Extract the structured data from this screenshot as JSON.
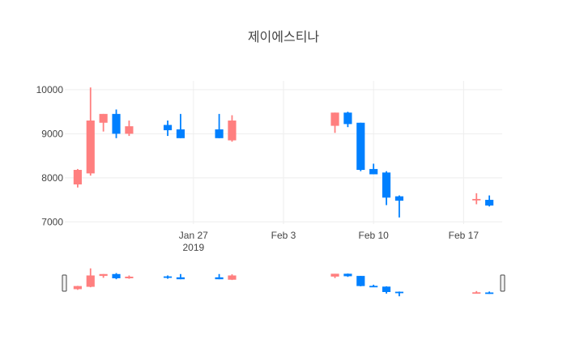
{
  "chart_data": {
    "type": "candlestick",
    "title": "제이에스티나",
    "colors": {
      "up": "#FF7F7F",
      "down": "#0080FF",
      "grid": "#eeeeee"
    },
    "ylim": [
      6950,
      10200
    ],
    "xlim": [
      "2019-01-17",
      "2019-02-20"
    ],
    "y_ticks": [
      {
        "value": 7000,
        "label": "7000"
      },
      {
        "value": 8000,
        "label": "8000"
      },
      {
        "value": 9000,
        "label": "9000"
      },
      {
        "value": 10000,
        "label": "10000"
      }
    ],
    "x_ticks": [
      {
        "date": "2019-01-27",
        "label": "Jan 27",
        "sublabel": "2019"
      },
      {
        "date": "2019-02-03",
        "label": "Feb 3",
        "sublabel": ""
      },
      {
        "date": "2019-02-10",
        "label": "Feb 10",
        "sublabel": ""
      },
      {
        "date": "2019-02-17",
        "label": "Feb 17",
        "sublabel": ""
      }
    ],
    "candles": [
      {
        "date": "2019-01-18",
        "open": 7850,
        "high": 8200,
        "low": 7780,
        "close": 8180
      },
      {
        "date": "2019-01-19",
        "open": 8100,
        "high": 10050,
        "low": 8050,
        "close": 9300
      },
      {
        "date": "2019-01-20",
        "open": 9250,
        "high": 9450,
        "low": 9050,
        "close": 9450
      },
      {
        "date": "2019-01-21",
        "open": 9450,
        "high": 9550,
        "low": 8900,
        "close": 9000
      },
      {
        "date": "2019-01-22",
        "open": 9000,
        "high": 9300,
        "low": 8950,
        "close": 9170
      },
      {
        "date": "2019-01-25",
        "open": 9200,
        "high": 9300,
        "low": 8950,
        "close": 9080
      },
      {
        "date": "2019-01-26",
        "open": 9100,
        "high": 9450,
        "low": 8900,
        "close": 8900
      },
      {
        "date": "2019-01-29",
        "open": 9100,
        "high": 9450,
        "low": 8900,
        "close": 8900
      },
      {
        "date": "2019-01-30",
        "open": 8850,
        "high": 9420,
        "low": 8820,
        "close": 9300
      },
      {
        "date": "2019-02-07",
        "open": 9180,
        "high": 9480,
        "low": 9020,
        "close": 9480
      },
      {
        "date": "2019-02-08",
        "open": 9480,
        "high": 9500,
        "low": 9150,
        "close": 9220
      },
      {
        "date": "2019-02-09",
        "open": 9250,
        "high": 9250,
        "low": 8150,
        "close": 8180
      },
      {
        "date": "2019-02-10",
        "open": 8200,
        "high": 8320,
        "low": 8080,
        "close": 8080
      },
      {
        "date": "2019-02-11",
        "open": 8120,
        "high": 8150,
        "low": 7380,
        "close": 7550
      },
      {
        "date": "2019-02-12",
        "open": 7580,
        "high": 7600,
        "low": 7100,
        "close": 7480
      },
      {
        "date": "2019-02-18",
        "open": 7500,
        "high": 7650,
        "low": 7400,
        "close": 7520
      },
      {
        "date": "2019-02-19",
        "open": 7500,
        "high": 7600,
        "low": 7350,
        "close": 7370
      }
    ]
  }
}
